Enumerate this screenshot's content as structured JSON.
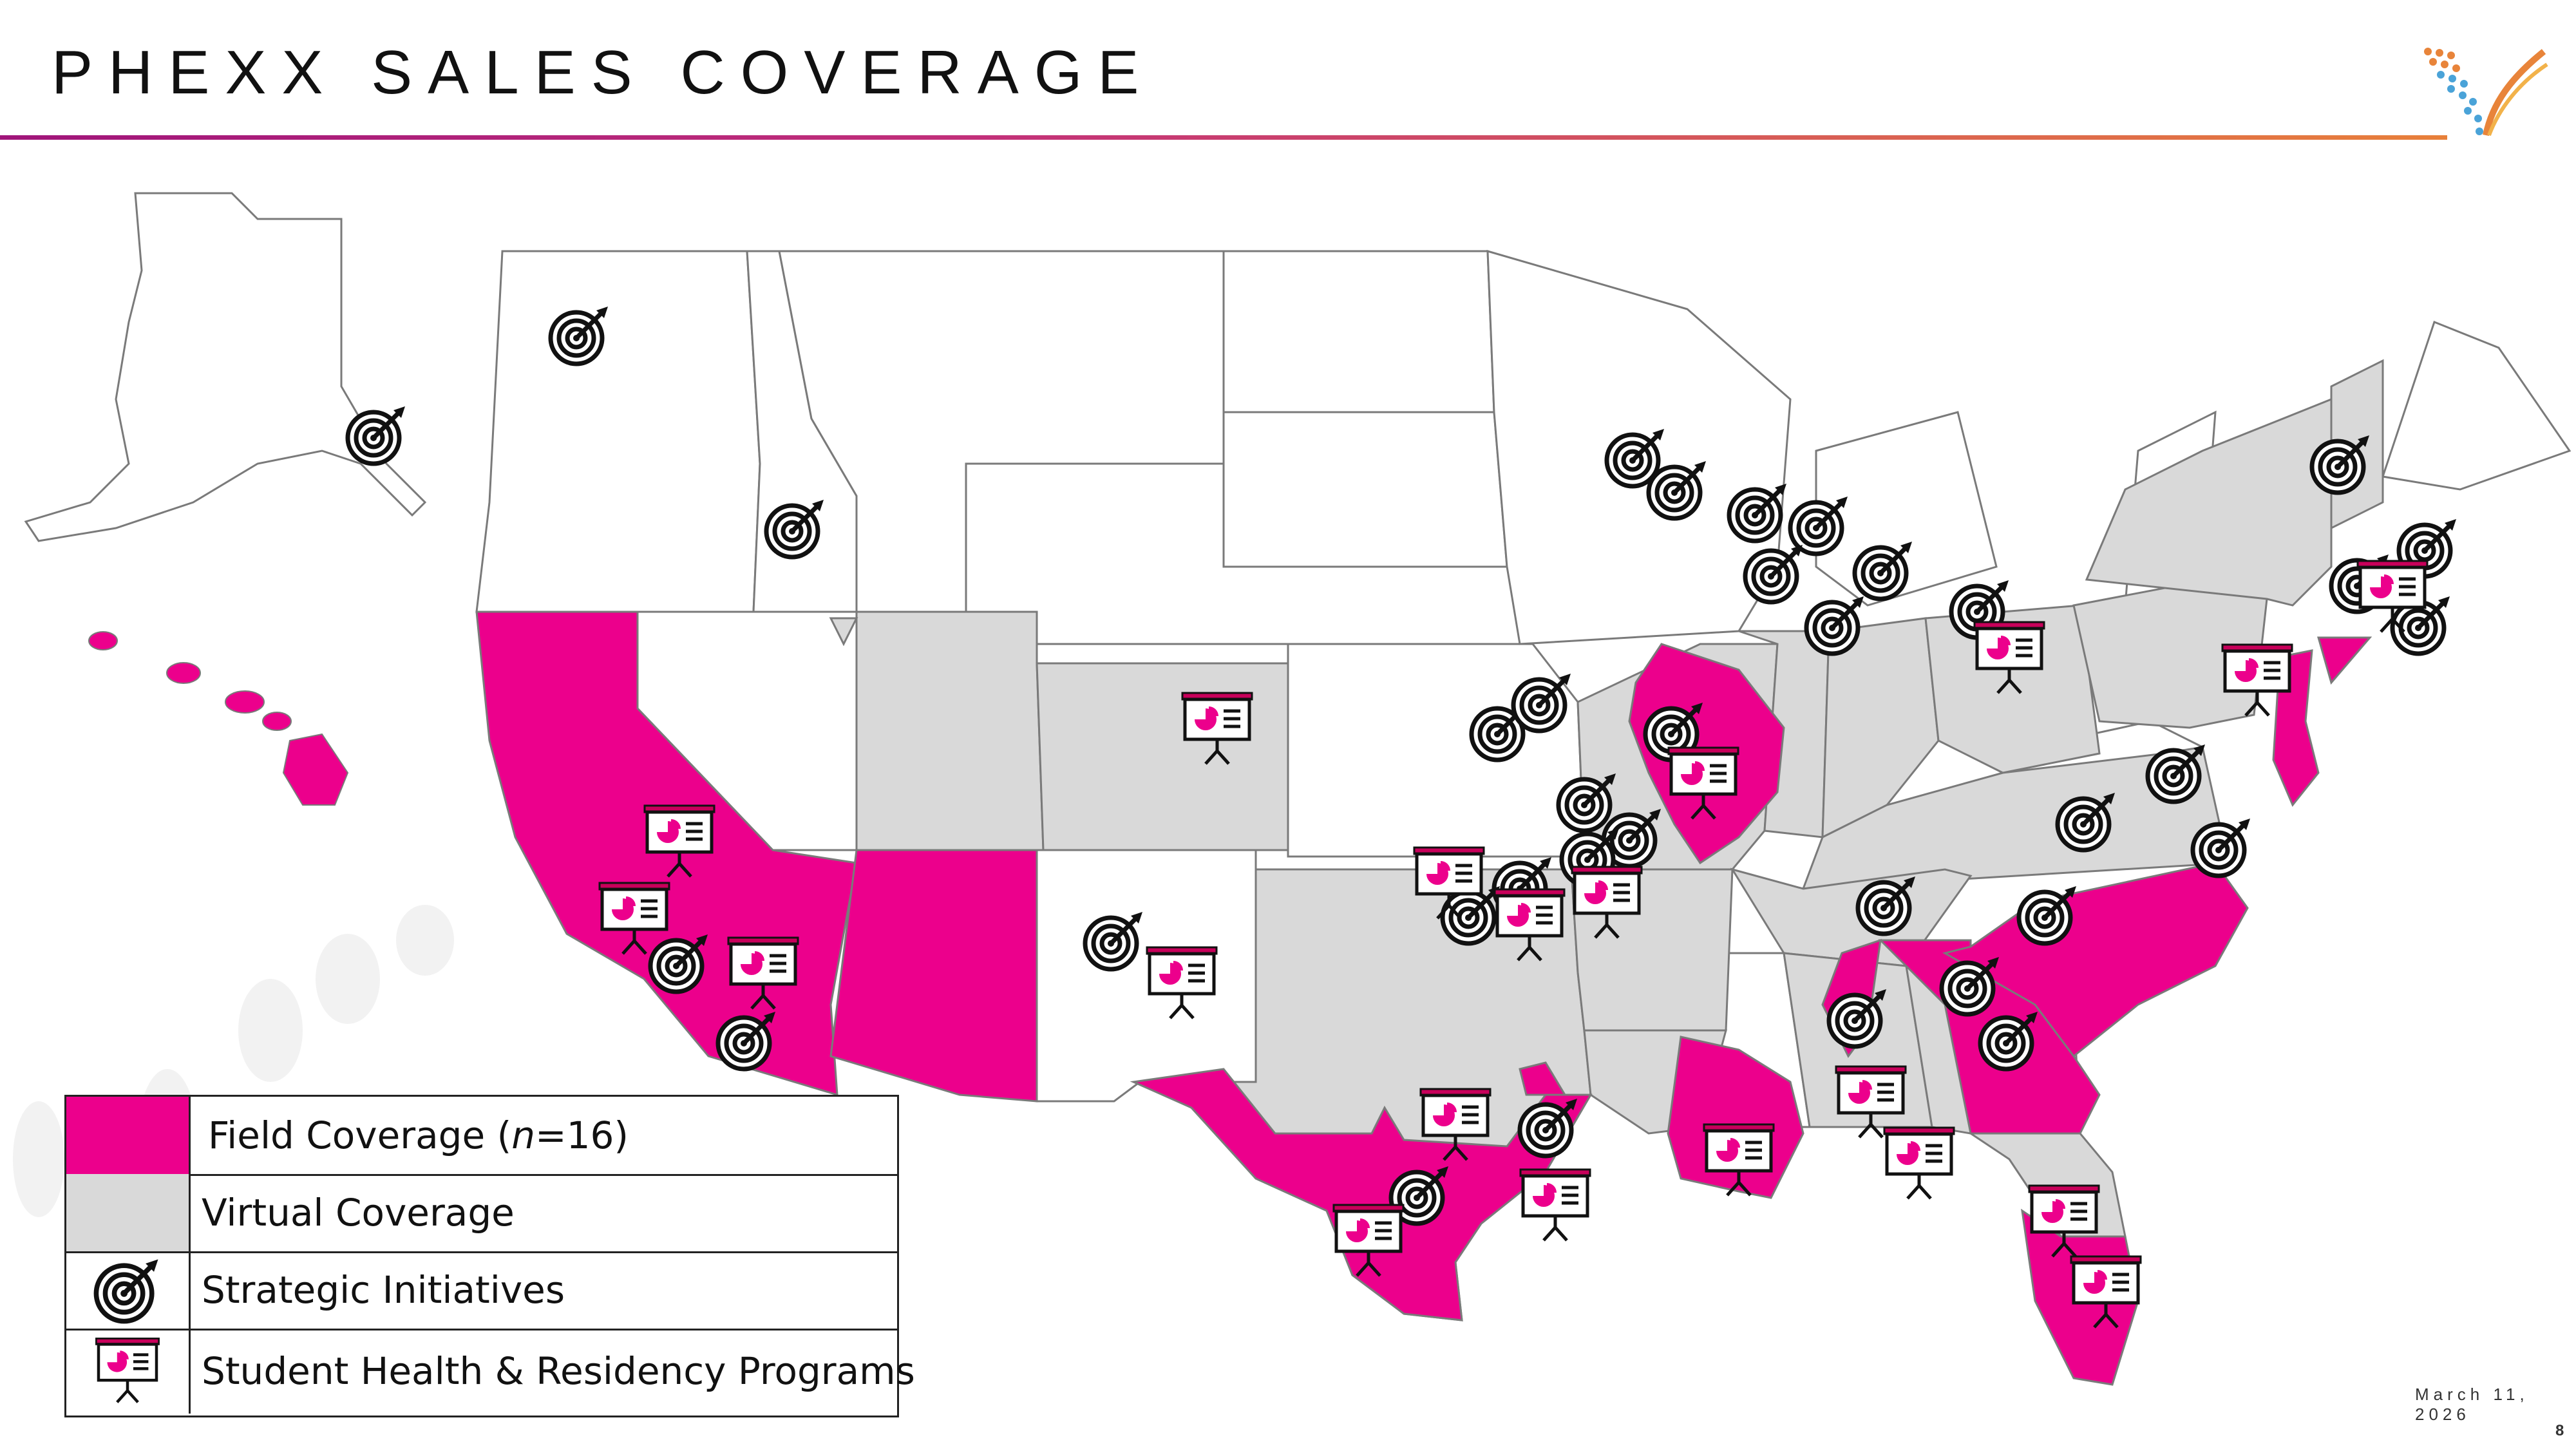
{
  "slide": {
    "title": "PHEXX SALES COVERAGE",
    "date": "March 11, 2026",
    "page_number": "8"
  },
  "colors": {
    "field": "#EC008C",
    "virtual": "#D9D9D9",
    "none": "#FFFFFF",
    "border": "#7A7A7A"
  },
  "legend": {
    "field_label": "Field Coverage (",
    "field_n": "n",
    "field_suffix": "=16)",
    "virtual_label": "Virtual Coverage",
    "strategic_label": "Strategic Initiatives",
    "student_label": "Student Health & Residency Programs"
  },
  "map": {
    "field_coverage_states": [
      "California",
      "Arizona",
      "Texas (south)",
      "Louisiana",
      "Georgia",
      "North Carolina",
      "Illinois",
      "New Jersey",
      "Florida (south)",
      "Hawaii"
    ],
    "virtual_coverage_states": [
      "Utah",
      "Colorado",
      "Texas",
      "Oklahoma",
      "Arkansas",
      "Missouri",
      "Tennessee",
      "Kentucky",
      "Indiana",
      "Ohio",
      "Pennsylvania",
      "New York",
      "Virginia",
      "Mississippi",
      "Alabama",
      "Florida",
      "Vermont",
      "New Hampshire"
    ],
    "icon_types": [
      "target-icon",
      "presentation-icon"
    ]
  }
}
